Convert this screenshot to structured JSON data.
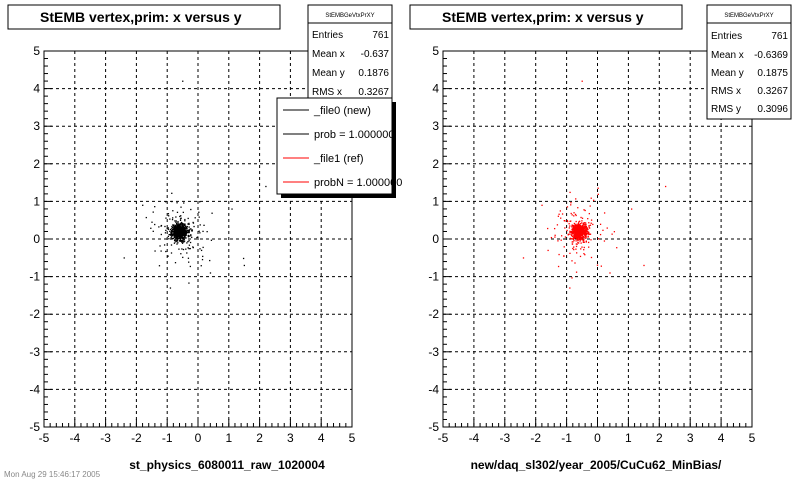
{
  "chart_data": [
    {
      "type": "scatter",
      "title": "StEMB  vertex,prim: x versus y",
      "xlabel": "st_physics_6080011_raw_1020004",
      "ylabel": "",
      "xlim": [
        -5,
        5
      ],
      "ylim": [
        -5,
        5
      ],
      "xticks": [
        "-5",
        "-4",
        "-3",
        "-2",
        "-1",
        "0",
        "1",
        "2",
        "3",
        "4",
        "5"
      ],
      "yticks": [
        "-5",
        "-4",
        "-3",
        "-2",
        "-1",
        "0",
        "1",
        "2",
        "3",
        "4",
        "5"
      ],
      "grid": true,
      "marker_color": "#000000",
      "cluster_center": [
        -0.6,
        0.2
      ],
      "stats": {
        "name": "StEMBGeVtxPrXY",
        "rows": [
          {
            "label": "Entries",
            "value": "761"
          },
          {
            "label": "Mean x",
            "value": "-0.637"
          },
          {
            "label": "Mean y",
            "value": "0.1876"
          },
          {
            "label": "RMS x",
            "value": "0.3267"
          }
        ]
      },
      "legend": [
        {
          "label": "_file0 (new)",
          "color": "#000000"
        },
        {
          "label": "prob = 1.000000",
          "color": "#000000"
        },
        {
          "label": "_file1 (ref)",
          "color": "#ff0000"
        },
        {
          "label": "probN = 1.000000",
          "color": "#ff0000"
        }
      ]
    },
    {
      "type": "scatter",
      "title": "StEMB  vertex,prim: x versus y",
      "xlabel": "new/daq_sl302/year_2005/CuCu62_MinBias/",
      "ylabel": "",
      "xlim": [
        -5,
        5
      ],
      "ylim": [
        -5,
        5
      ],
      "xticks": [
        "-5",
        "-4",
        "-3",
        "-2",
        "-1",
        "0",
        "1",
        "2",
        "3",
        "4",
        "5"
      ],
      "yticks": [
        "-5",
        "-4",
        "-3",
        "-2",
        "-1",
        "0",
        "1",
        "2",
        "3",
        "4",
        "5"
      ],
      "grid": true,
      "marker_color": "#ff0000",
      "cluster_center": [
        -0.6,
        0.2
      ],
      "stats": {
        "name": "StEMBGeVtxPrXY",
        "rows": [
          {
            "label": "Entries",
            "value": "761"
          },
          {
            "label": "Mean x",
            "value": "-0.6369"
          },
          {
            "label": "Mean y",
            "value": "0.1875"
          },
          {
            "label": "RMS x",
            "value": "0.3267"
          },
          {
            "label": "RMS y",
            "value": "0.3096"
          }
        ]
      }
    }
  ],
  "footer": "Mon Aug 29 15:46:17 2005"
}
